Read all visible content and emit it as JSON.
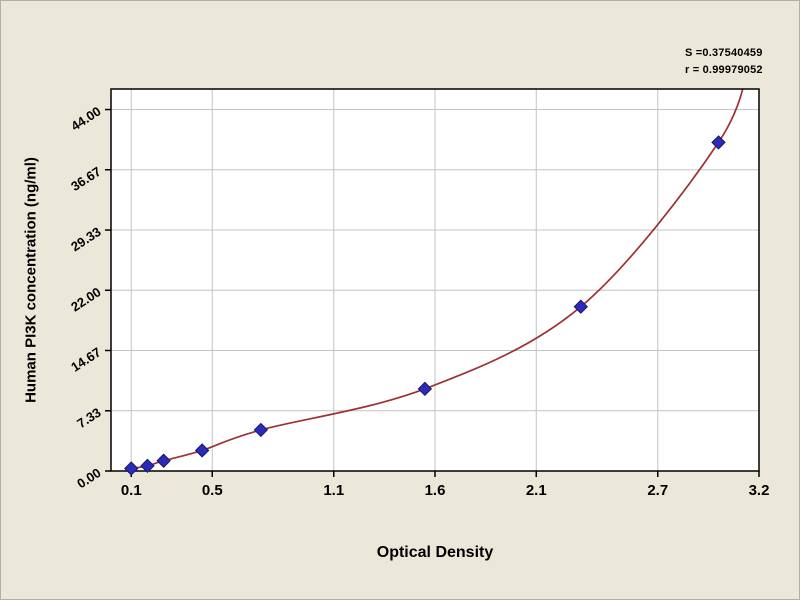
{
  "chart_data": {
    "type": "line",
    "title": "",
    "xlabel": "Optical Density",
    "ylabel": "Human PI3K concentration (ng/ml)",
    "legend": false,
    "grid": true,
    "xlim": [
      0,
      3.2
    ],
    "ylim": [
      0,
      46.5
    ],
    "x_ticks": {
      "values": [
        0.1,
        0.5,
        1.1,
        1.6,
        2.1,
        2.7,
        3.2
      ],
      "labels": [
        "0.1",
        "0.5",
        "1.1",
        "1.6",
        "2.1",
        "2.7",
        "3.2"
      ]
    },
    "y_ticks": {
      "values": [
        0,
        7.33,
        14.67,
        22,
        29.33,
        36.67,
        44
      ],
      "labels": [
        "0.00",
        "7.33",
        "14.67",
        "22.00",
        "29.33",
        "36.67",
        "44.00"
      ]
    },
    "points": {
      "x": [
        0.1,
        0.18,
        0.26,
        0.45,
        0.74,
        1.55,
        2.32,
        3.0
      ],
      "y": [
        0.31,
        0.63,
        1.25,
        2.5,
        5,
        10,
        20,
        40
      ]
    },
    "curve_extension": [
      3.16,
      51
    ],
    "annotations": [
      "S =0.37540459",
      "r = 0.99979052"
    ],
    "colors": {
      "background": "#ece8d9",
      "plot_bg": "#ffffff",
      "grid": "#c4c4c4",
      "axis": "#000000",
      "curve": "#9c3234",
      "marker": "#2b2bb8",
      "marker_edge": "#17176b"
    }
  }
}
